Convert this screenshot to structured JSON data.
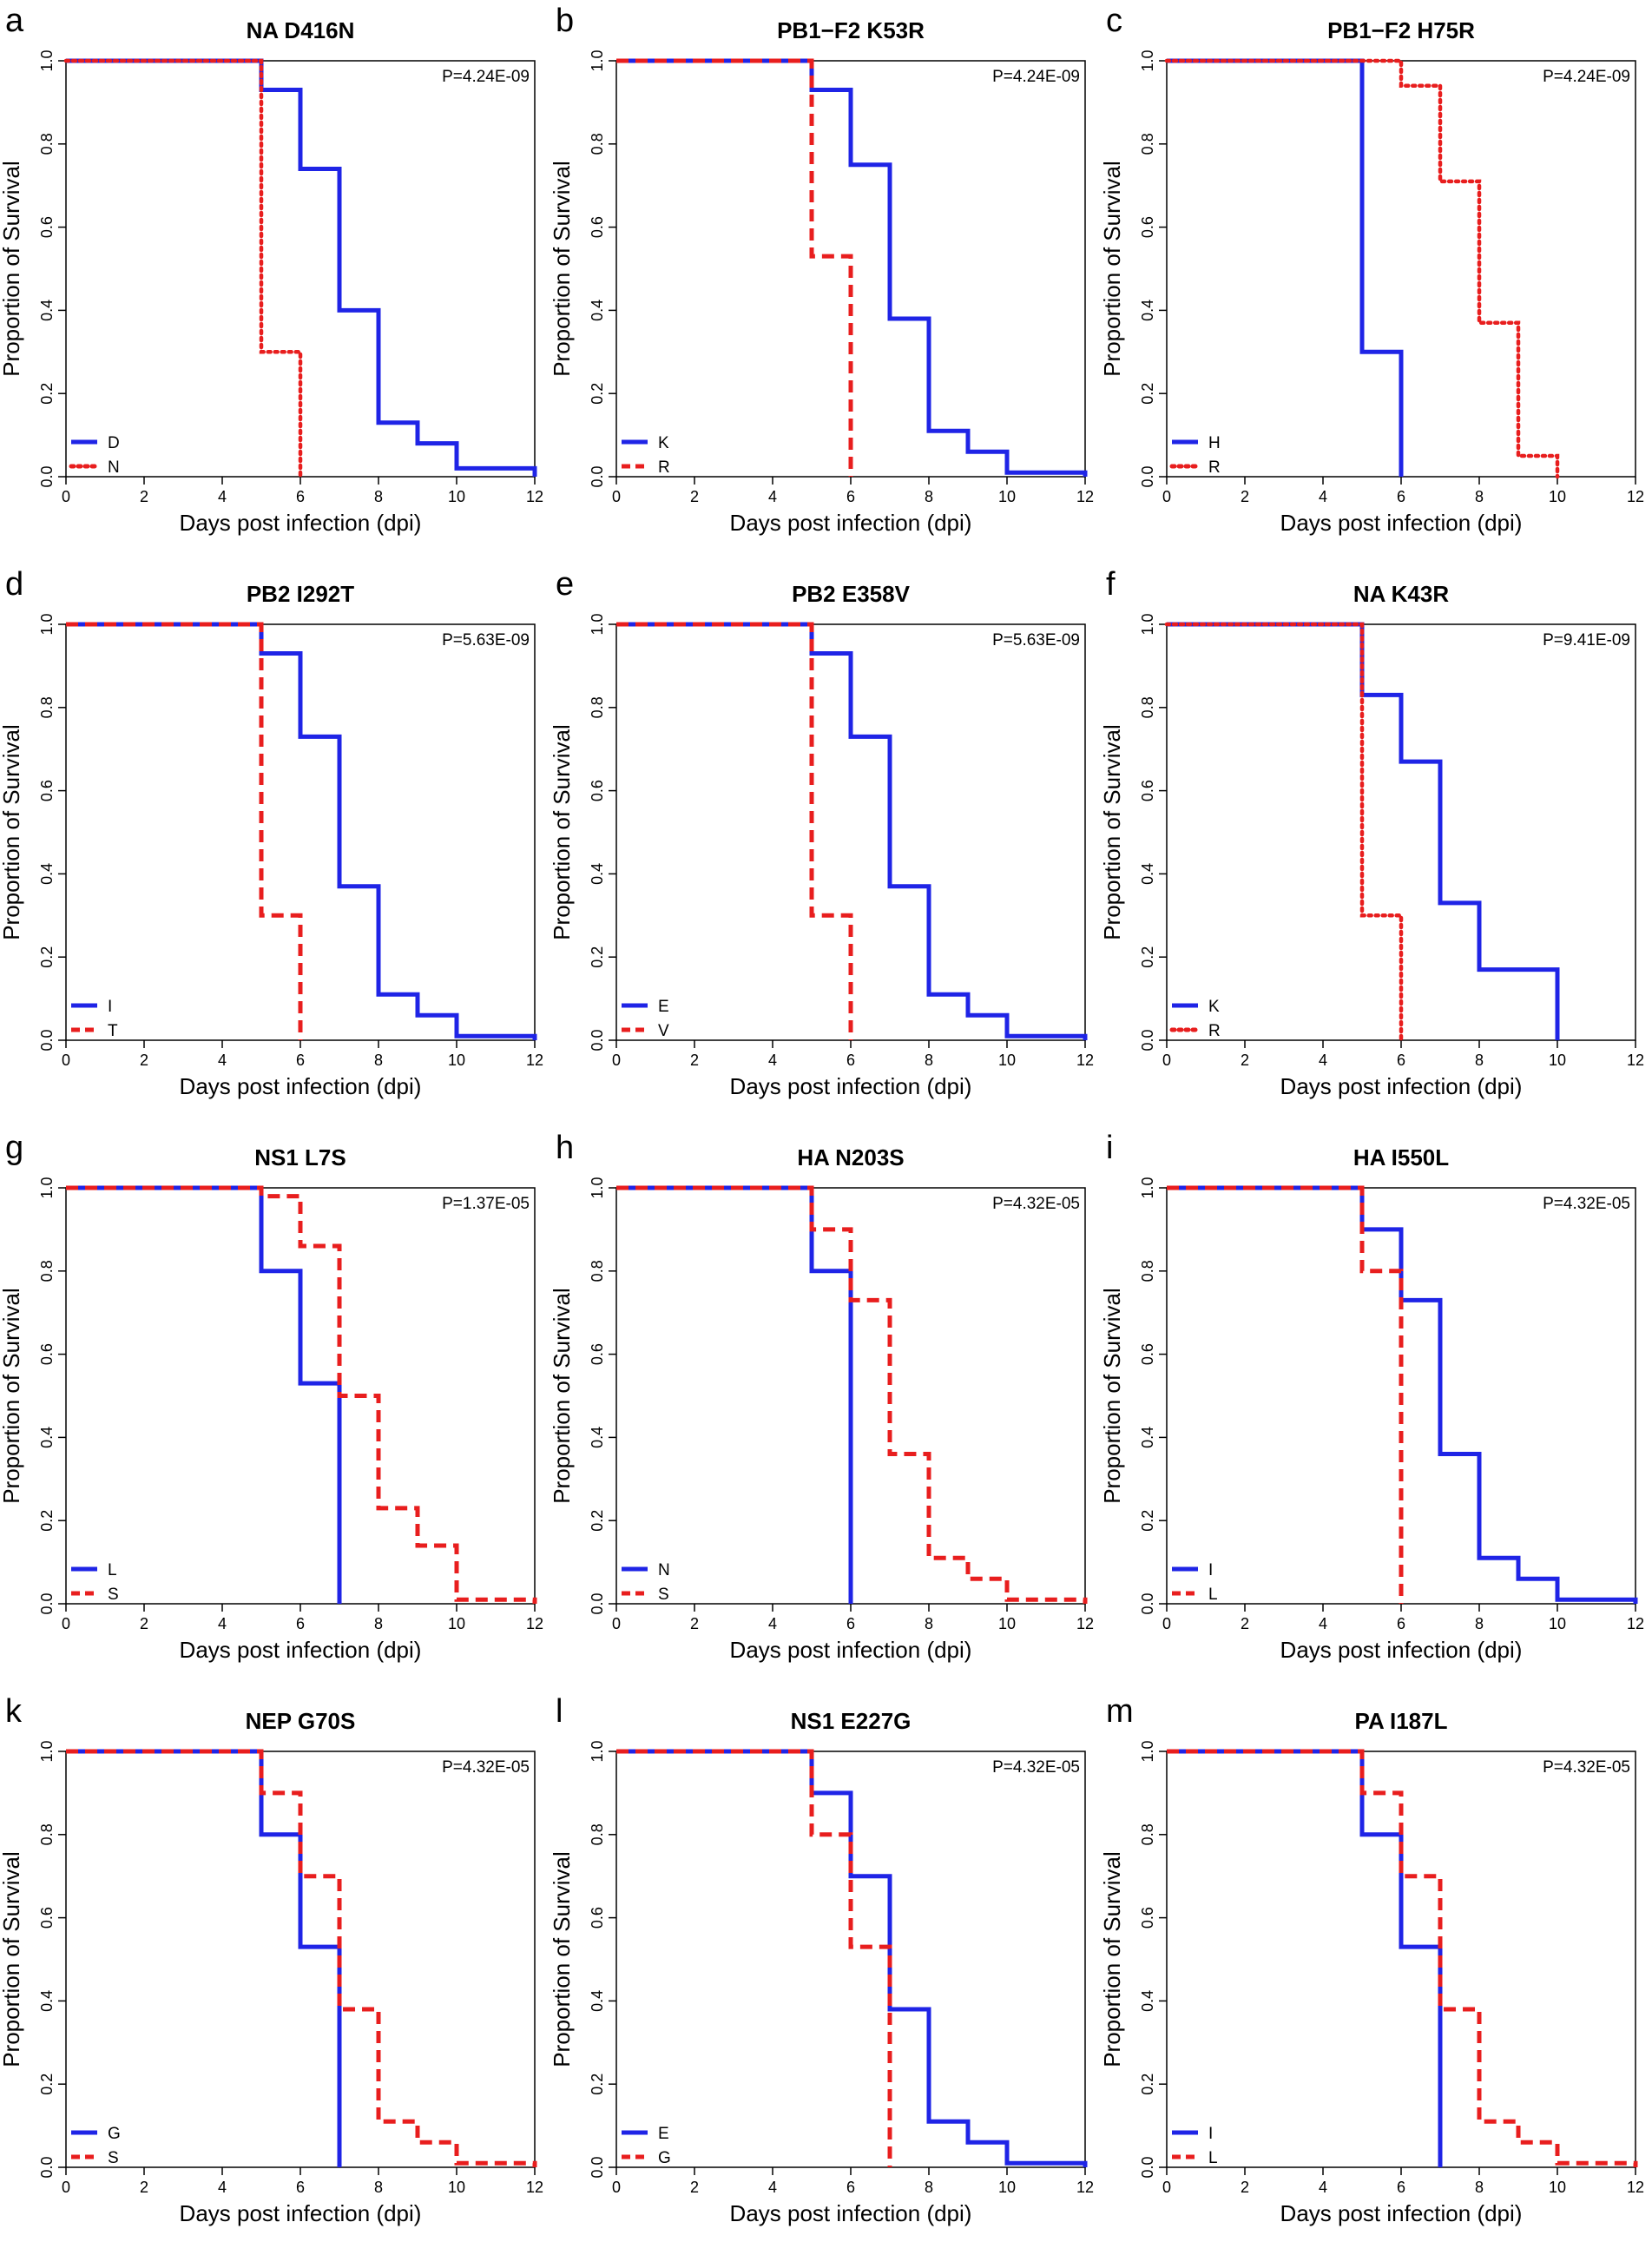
{
  "colors": {
    "blue": "#1f24e6",
    "red": "#e81e1e"
  },
  "shared": {
    "xlabel": "Days post infection (dpi)",
    "ylabel": "Proportion of Survival",
    "x_ticks": [
      "0",
      "2",
      "4",
      "6",
      "8",
      "10",
      "12"
    ],
    "y_ticks": [
      "0.0",
      "0.2",
      "0.4",
      "0.6",
      "0.8",
      "1.0"
    ],
    "xlim": [
      0,
      12
    ],
    "ylim": [
      0,
      1
    ]
  },
  "chart_data": [
    {
      "letter": "a",
      "type": "line",
      "title": "NA D416N",
      "pvalue": "P=4.24E-09",
      "xlabel": "Days post infection (dpi)",
      "ylabel": "Proportion of Survival",
      "xlim": [
        0,
        12
      ],
      "ylim": [
        0,
        1
      ],
      "series": [
        {
          "name": "D",
          "color": "blue",
          "style": "solid",
          "x": [
            0,
            5,
            6,
            7,
            8,
            9,
            10,
            12
          ],
          "y": [
            1.0,
            0.93,
            0.74,
            0.4,
            0.13,
            0.08,
            0.02,
            0.0
          ]
        },
        {
          "name": "N",
          "color": "red",
          "style": "dotted",
          "x": [
            0,
            5,
            6
          ],
          "y": [
            1.0,
            0.3,
            0.0
          ]
        }
      ]
    },
    {
      "letter": "b",
      "type": "line",
      "title": "PB1−F2 K53R",
      "pvalue": "P=4.24E-09",
      "xlabel": "Days post infection (dpi)",
      "ylabel": "Proportion of Survival",
      "xlim": [
        0,
        12
      ],
      "ylim": [
        0,
        1
      ],
      "series": [
        {
          "name": "K",
          "color": "blue",
          "style": "solid",
          "x": [
            0,
            5,
            6,
            7,
            8,
            9,
            10,
            12
          ],
          "y": [
            1.0,
            0.93,
            0.75,
            0.38,
            0.11,
            0.06,
            0.01,
            0.0
          ]
        },
        {
          "name": "R",
          "color": "red",
          "style": "dashed",
          "x": [
            0,
            5,
            6
          ],
          "y": [
            1.0,
            0.53,
            0.0
          ]
        }
      ]
    },
    {
      "letter": "c",
      "type": "line",
      "title": "PB1−F2 H75R",
      "pvalue": "P=4.24E-09",
      "xlabel": "Days post infection (dpi)",
      "ylabel": "Proportion of Survival",
      "xlim": [
        0,
        12
      ],
      "ylim": [
        0,
        1
      ],
      "series": [
        {
          "name": "H",
          "color": "blue",
          "style": "solid",
          "x": [
            0,
            5,
            6
          ],
          "y": [
            1.0,
            0.3,
            0.0
          ]
        },
        {
          "name": "R",
          "color": "red",
          "style": "dotted",
          "x": [
            0,
            6,
            7,
            8,
            9,
            10
          ],
          "y": [
            1.0,
            0.94,
            0.71,
            0.37,
            0.05,
            0.0
          ]
        }
      ]
    },
    {
      "letter": "d",
      "type": "line",
      "title": "PB2 I292T",
      "pvalue": "P=5.63E-09",
      "xlabel": "Days post infection (dpi)",
      "ylabel": "Proportion of Survival",
      "xlim": [
        0,
        12
      ],
      "ylim": [
        0,
        1
      ],
      "series": [
        {
          "name": "I",
          "color": "blue",
          "style": "solid",
          "x": [
            0,
            5,
            6,
            7,
            8,
            9,
            10,
            12
          ],
          "y": [
            1.0,
            0.93,
            0.73,
            0.37,
            0.11,
            0.06,
            0.01,
            0.0
          ]
        },
        {
          "name": "T",
          "color": "red",
          "style": "dashed",
          "x": [
            0,
            5,
            6
          ],
          "y": [
            1.0,
            0.3,
            0.0
          ]
        }
      ]
    },
    {
      "letter": "e",
      "type": "line",
      "title": "PB2 E358V",
      "pvalue": "P=5.63E-09",
      "xlabel": "Days post infection (dpi)",
      "ylabel": "Proportion of Survival",
      "xlim": [
        0,
        12
      ],
      "ylim": [
        0,
        1
      ],
      "series": [
        {
          "name": "E",
          "color": "blue",
          "style": "solid",
          "x": [
            0,
            5,
            6,
            7,
            8,
            9,
            10,
            12
          ],
          "y": [
            1.0,
            0.93,
            0.73,
            0.37,
            0.11,
            0.06,
            0.01,
            0.0
          ]
        },
        {
          "name": "V",
          "color": "red",
          "style": "dashed",
          "x": [
            0,
            5,
            6
          ],
          "y": [
            1.0,
            0.3,
            0.0
          ]
        }
      ]
    },
    {
      "letter": "f",
      "type": "line",
      "title": "NA K43R",
      "pvalue": "P=9.41E-09",
      "xlabel": "Days post infection (dpi)",
      "ylabel": "Proportion of Survival",
      "xlim": [
        0,
        12
      ],
      "ylim": [
        0,
        1
      ],
      "series": [
        {
          "name": "K",
          "color": "blue",
          "style": "solid",
          "x": [
            0,
            5,
            6,
            7,
            8,
            10
          ],
          "y": [
            1.0,
            0.83,
            0.67,
            0.33,
            0.17,
            0.0
          ]
        },
        {
          "name": "R",
          "color": "red",
          "style": "dotted",
          "x": [
            0,
            5,
            6
          ],
          "y": [
            1.0,
            0.3,
            0.0
          ]
        }
      ]
    },
    {
      "letter": "g",
      "type": "line",
      "title": "NS1 L7S",
      "pvalue": "P=1.37E-05",
      "xlabel": "Days post infection (dpi)",
      "ylabel": "Proportion of Survival",
      "xlim": [
        0,
        12
      ],
      "ylim": [
        0,
        1
      ],
      "series": [
        {
          "name": "L",
          "color": "blue",
          "style": "solid",
          "x": [
            0,
            5,
            6,
            7
          ],
          "y": [
            1.0,
            0.8,
            0.53,
            0.0
          ]
        },
        {
          "name": "S",
          "color": "red",
          "style": "dashed",
          "x": [
            0,
            5,
            6,
            7,
            8,
            9,
            10,
            12
          ],
          "y": [
            1.0,
            0.98,
            0.86,
            0.5,
            0.23,
            0.14,
            0.01,
            0.0
          ]
        }
      ]
    },
    {
      "letter": "h",
      "type": "line",
      "title": "HA N203S",
      "pvalue": "P=4.32E-05",
      "xlabel": "Days post infection (dpi)",
      "ylabel": "Proportion of Survival",
      "xlim": [
        0,
        12
      ],
      "ylim": [
        0,
        1
      ],
      "series": [
        {
          "name": "N",
          "color": "blue",
          "style": "solid",
          "x": [
            0,
            5,
            6
          ],
          "y": [
            1.0,
            0.8,
            0.0
          ]
        },
        {
          "name": "S",
          "color": "red",
          "style": "dashed",
          "x": [
            0,
            5,
            6,
            7,
            8,
            9,
            10,
            12
          ],
          "y": [
            1.0,
            0.9,
            0.73,
            0.36,
            0.11,
            0.06,
            0.01,
            0.0
          ]
        }
      ]
    },
    {
      "letter": "i",
      "type": "line",
      "title": "HA I550L",
      "pvalue": "P=4.32E-05",
      "xlabel": "Days post infection (dpi)",
      "ylabel": "Proportion of Survival",
      "xlim": [
        0,
        12
      ],
      "ylim": [
        0,
        1
      ],
      "series": [
        {
          "name": "I",
          "color": "blue",
          "style": "solid",
          "x": [
            0,
            5,
            6,
            7,
            8,
            9,
            10,
            12
          ],
          "y": [
            1.0,
            0.9,
            0.73,
            0.36,
            0.11,
            0.06,
            0.01,
            0.0
          ]
        },
        {
          "name": "L",
          "color": "red",
          "style": "dashed",
          "x": [
            0,
            5,
            6
          ],
          "y": [
            1.0,
            0.8,
            0.0
          ]
        }
      ]
    },
    {
      "letter": "k",
      "type": "line",
      "title": "NEP G70S",
      "pvalue": "P=4.32E-05",
      "xlabel": "Days post infection (dpi)",
      "ylabel": "Proportion of Survival",
      "xlim": [
        0,
        12
      ],
      "ylim": [
        0,
        1
      ],
      "series": [
        {
          "name": "G",
          "color": "blue",
          "style": "solid",
          "x": [
            0,
            5,
            6,
            7
          ],
          "y": [
            1.0,
            0.8,
            0.53,
            0.0
          ]
        },
        {
          "name": "S",
          "color": "red",
          "style": "dashed",
          "x": [
            0,
            5,
            6,
            7,
            8,
            9,
            10,
            12
          ],
          "y": [
            1.0,
            0.9,
            0.7,
            0.38,
            0.11,
            0.06,
            0.01,
            0.0
          ]
        }
      ]
    },
    {
      "letter": "l",
      "type": "line",
      "title": "NS1 E227G",
      "pvalue": "P=4.32E-05",
      "xlabel": "Days post infection (dpi)",
      "ylabel": "Proportion of Survival",
      "xlim": [
        0,
        12
      ],
      "ylim": [
        0,
        1
      ],
      "series": [
        {
          "name": "E",
          "color": "blue",
          "style": "solid",
          "x": [
            0,
            5,
            6,
            7,
            8,
            9,
            10,
            12
          ],
          "y": [
            1.0,
            0.9,
            0.7,
            0.38,
            0.11,
            0.06,
            0.01,
            0.0
          ]
        },
        {
          "name": "G",
          "color": "red",
          "style": "dashed",
          "x": [
            0,
            5,
            6,
            7
          ],
          "y": [
            1.0,
            0.8,
            0.53,
            0.0
          ]
        }
      ]
    },
    {
      "letter": "m",
      "type": "line",
      "title": "PA I187L",
      "pvalue": "P=4.32E-05",
      "xlabel": "Days post infection (dpi)",
      "ylabel": "Proportion of Survival",
      "xlim": [
        0,
        12
      ],
      "ylim": [
        0,
        1
      ],
      "series": [
        {
          "name": "I",
          "color": "blue",
          "style": "solid",
          "x": [
            0,
            5,
            6,
            7
          ],
          "y": [
            1.0,
            0.8,
            0.53,
            0.0
          ]
        },
        {
          "name": "L",
          "color": "red",
          "style": "dashed",
          "x": [
            0,
            5,
            6,
            7,
            8,
            9,
            10,
            12
          ],
          "y": [
            1.0,
            0.9,
            0.7,
            0.38,
            0.11,
            0.06,
            0.01,
            0.0
          ]
        }
      ]
    }
  ]
}
